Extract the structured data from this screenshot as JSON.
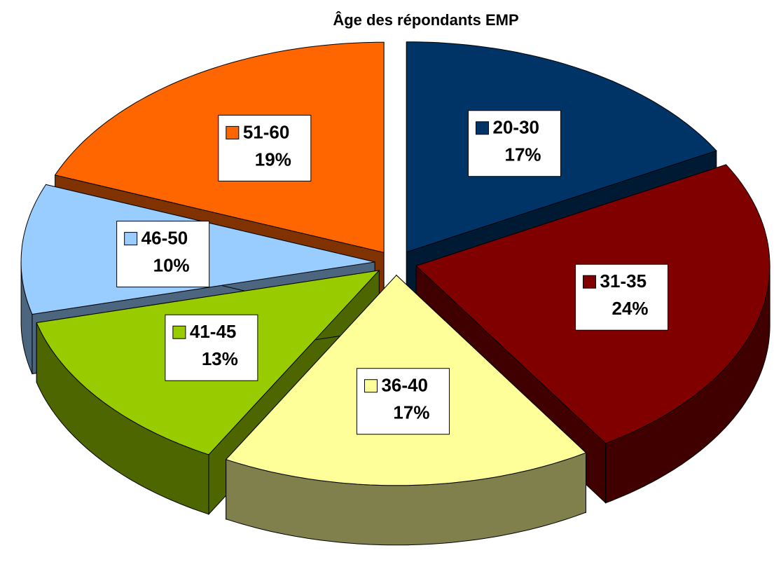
{
  "chart_data": {
    "type": "pie3d",
    "title": "Âge des répondants EMP",
    "categories": [
      "20-30",
      "31-35",
      "36-40",
      "41-45",
      "46-50",
      "51-60"
    ],
    "values": [
      17,
      24,
      17,
      13,
      10,
      19
    ],
    "value_labels": [
      "17%",
      "24%",
      "17%",
      "13%",
      "10%",
      "19%"
    ],
    "colors": [
      "#003366",
      "#800000",
      "#ffff99",
      "#99cc00",
      "#99ccff",
      "#ff6600"
    ]
  }
}
